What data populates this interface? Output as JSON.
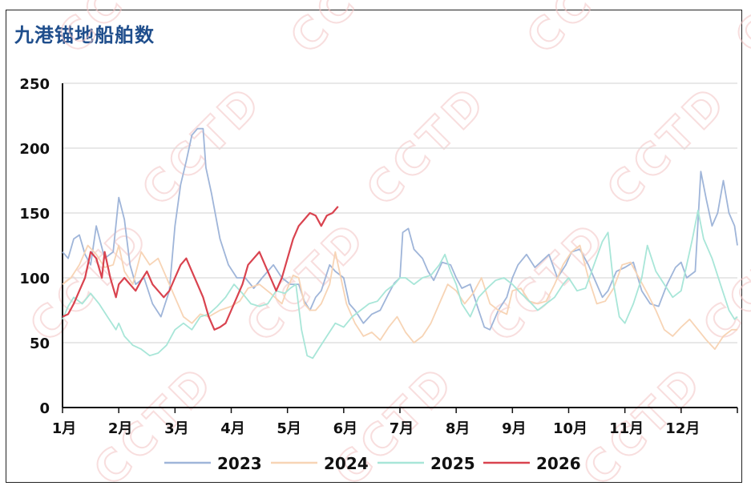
{
  "chart_data": {
    "type": "line",
    "title": "九港锚地船舶数",
    "ylim": [
      0,
      250
    ],
    "yticks": [
      0,
      50,
      100,
      150,
      200,
      250
    ],
    "categories": [
      "1月",
      "2月",
      "3月",
      "4月",
      "5月",
      "6月",
      "7月",
      "8月",
      "9月",
      "10月",
      "11月",
      "12月"
    ],
    "grid": "horizontal",
    "legend_position": "bottom",
    "watermark": "CCTD",
    "series": [
      {
        "name": "2023",
        "color": "#9fb5d9",
        "points": [
          [
            0,
            120
          ],
          [
            0.1,
            115
          ],
          [
            0.2,
            130
          ],
          [
            0.3,
            133
          ],
          [
            0.4,
            118
          ],
          [
            0.5,
            110
          ],
          [
            0.6,
            140
          ],
          [
            0.75,
            115
          ],
          [
            0.9,
            120
          ],
          [
            1.0,
            162
          ],
          [
            1.1,
            145
          ],
          [
            1.2,
            110
          ],
          [
            1.3,
            95
          ],
          [
            1.45,
            100
          ],
          [
            1.6,
            80
          ],
          [
            1.75,
            70
          ],
          [
            1.9,
            90
          ],
          [
            2.0,
            140
          ],
          [
            2.1,
            172
          ],
          [
            2.2,
            190
          ],
          [
            2.3,
            210
          ],
          [
            2.4,
            215
          ],
          [
            2.5,
            215
          ],
          [
            2.55,
            185
          ],
          [
            2.65,
            165
          ],
          [
            2.8,
            130
          ],
          [
            2.95,
            110
          ],
          [
            3.1,
            100
          ],
          [
            3.25,
            100
          ],
          [
            3.4,
            92
          ],
          [
            3.55,
            100
          ],
          [
            3.75,
            110
          ],
          [
            3.9,
            100
          ],
          [
            4.05,
            95
          ],
          [
            4.2,
            95
          ],
          [
            4.3,
            82
          ],
          [
            4.4,
            75
          ],
          [
            4.5,
            85
          ],
          [
            4.6,
            90
          ],
          [
            4.75,
            110
          ],
          [
            4.85,
            105
          ],
          [
            5.0,
            100
          ],
          [
            5.1,
            80
          ],
          [
            5.2,
            75
          ],
          [
            5.35,
            65
          ],
          [
            5.5,
            72
          ],
          [
            5.65,
            75
          ],
          [
            5.8,
            88
          ],
          [
            5.9,
            96
          ],
          [
            6.0,
            100
          ],
          [
            6.05,
            135
          ],
          [
            6.15,
            138
          ],
          [
            6.25,
            122
          ],
          [
            6.4,
            115
          ],
          [
            6.5,
            105
          ],
          [
            6.6,
            98
          ],
          [
            6.75,
            112
          ],
          [
            6.9,
            110
          ],
          [
            7.0,
            100
          ],
          [
            7.1,
            92
          ],
          [
            7.25,
            95
          ],
          [
            7.4,
            75
          ],
          [
            7.5,
            62
          ],
          [
            7.6,
            60
          ],
          [
            7.75,
            75
          ],
          [
            7.9,
            85
          ],
          [
            8.0,
            100
          ],
          [
            8.1,
            110
          ],
          [
            8.25,
            118
          ],
          [
            8.4,
            108
          ],
          [
            8.5,
            112
          ],
          [
            8.65,
            118
          ],
          [
            8.8,
            100
          ],
          [
            8.95,
            110
          ],
          [
            9.05,
            120
          ],
          [
            9.2,
            122
          ],
          [
            9.35,
            110
          ],
          [
            9.5,
            95
          ],
          [
            9.6,
            85
          ],
          [
            9.7,
            90
          ],
          [
            9.85,
            105
          ],
          [
            10.0,
            108
          ],
          [
            10.15,
            112
          ],
          [
            10.3,
            90
          ],
          [
            10.45,
            80
          ],
          [
            10.6,
            78
          ],
          [
            10.75,
            95
          ],
          [
            10.9,
            108
          ],
          [
            11.0,
            112
          ],
          [
            11.1,
            100
          ],
          [
            11.25,
            105
          ],
          [
            11.35,
            182
          ],
          [
            11.45,
            160
          ],
          [
            11.55,
            140
          ],
          [
            11.65,
            150
          ],
          [
            11.75,
            175
          ],
          [
            11.85,
            150
          ],
          [
            11.95,
            140
          ],
          [
            12.0,
            125
          ]
        ]
      },
      {
        "name": "2024",
        "color": "#f7d4b5",
        "points": [
          [
            0,
            95
          ],
          [
            0.15,
            100
          ],
          [
            0.3,
            110
          ],
          [
            0.45,
            125
          ],
          [
            0.6,
            118
          ],
          [
            0.75,
            108
          ],
          [
            0.9,
            110
          ],
          [
            1.0,
            125
          ],
          [
            1.1,
            105
          ],
          [
            1.25,
            95
          ],
          [
            1.4,
            120
          ],
          [
            1.55,
            110
          ],
          [
            1.7,
            115
          ],
          [
            1.85,
            100
          ],
          [
            2.0,
            85
          ],
          [
            2.15,
            70
          ],
          [
            2.3,
            65
          ],
          [
            2.45,
            72
          ],
          [
            2.6,
            70
          ],
          [
            2.8,
            75
          ],
          [
            3.0,
            78
          ],
          [
            3.15,
            82
          ],
          [
            3.3,
            92
          ],
          [
            3.5,
            95
          ],
          [
            3.7,
            88
          ],
          [
            3.9,
            80
          ],
          [
            4.0,
            92
          ],
          [
            4.1,
            102
          ],
          [
            4.2,
            100
          ],
          [
            4.3,
            80
          ],
          [
            4.4,
            75
          ],
          [
            4.5,
            75
          ],
          [
            4.6,
            80
          ],
          [
            4.75,
            95
          ],
          [
            4.85,
            120
          ],
          [
            4.95,
            100
          ],
          [
            5.05,
            80
          ],
          [
            5.2,
            65
          ],
          [
            5.35,
            55
          ],
          [
            5.5,
            58
          ],
          [
            5.65,
            52
          ],
          [
            5.8,
            62
          ],
          [
            5.95,
            70
          ],
          [
            6.1,
            58
          ],
          [
            6.25,
            50
          ],
          [
            6.4,
            55
          ],
          [
            6.55,
            65
          ],
          [
            6.7,
            80
          ],
          [
            6.85,
            95
          ],
          [
            7.0,
            90
          ],
          [
            7.15,
            80
          ],
          [
            7.3,
            88
          ],
          [
            7.45,
            100
          ],
          [
            7.6,
            80
          ],
          [
            7.75,
            75
          ],
          [
            7.9,
            72
          ],
          [
            8.0,
            90
          ],
          [
            8.15,
            92
          ],
          [
            8.3,
            82
          ],
          [
            8.45,
            80
          ],
          [
            8.6,
            82
          ],
          [
            8.75,
            95
          ],
          [
            8.9,
            110
          ],
          [
            9.05,
            120
          ],
          [
            9.2,
            125
          ],
          [
            9.35,
            100
          ],
          [
            9.5,
            80
          ],
          [
            9.65,
            82
          ],
          [
            9.8,
            92
          ],
          [
            9.95,
            110
          ],
          [
            10.1,
            112
          ],
          [
            10.25,
            100
          ],
          [
            10.4,
            88
          ],
          [
            10.55,
            75
          ],
          [
            10.7,
            60
          ],
          [
            10.85,
            55
          ],
          [
            11.0,
            62
          ],
          [
            11.15,
            68
          ],
          [
            11.3,
            60
          ],
          [
            11.45,
            52
          ],
          [
            11.6,
            45
          ],
          [
            11.75,
            55
          ],
          [
            11.9,
            60
          ],
          [
            12.0,
            60
          ]
        ]
      },
      {
        "name": "2025",
        "color": "#a8e6d8",
        "points": [
          [
            0,
            68
          ],
          [
            0.1,
            78
          ],
          [
            0.2,
            85
          ],
          [
            0.35,
            80
          ],
          [
            0.5,
            88
          ],
          [
            0.65,
            80
          ],
          [
            0.8,
            70
          ],
          [
            0.95,
            60
          ],
          [
            1.0,
            65
          ],
          [
            1.1,
            55
          ],
          [
            1.25,
            48
          ],
          [
            1.4,
            45
          ],
          [
            1.55,
            40
          ],
          [
            1.7,
            42
          ],
          [
            1.85,
            48
          ],
          [
            2.0,
            60
          ],
          [
            2.15,
            65
          ],
          [
            2.3,
            60
          ],
          [
            2.45,
            70
          ],
          [
            2.6,
            72
          ],
          [
            2.75,
            78
          ],
          [
            2.9,
            85
          ],
          [
            3.05,
            95
          ],
          [
            3.2,
            88
          ],
          [
            3.35,
            80
          ],
          [
            3.5,
            78
          ],
          [
            3.65,
            80
          ],
          [
            3.8,
            90
          ],
          [
            3.95,
            88
          ],
          [
            4.05,
            92
          ],
          [
            4.15,
            95
          ],
          [
            4.25,
            60
          ],
          [
            4.35,
            40
          ],
          [
            4.45,
            38
          ],
          [
            4.55,
            45
          ],
          [
            4.7,
            55
          ],
          [
            4.85,
            65
          ],
          [
            5.0,
            62
          ],
          [
            5.15,
            70
          ],
          [
            5.3,
            75
          ],
          [
            5.45,
            80
          ],
          [
            5.6,
            82
          ],
          [
            5.75,
            90
          ],
          [
            5.9,
            95
          ],
          [
            6.0,
            100
          ],
          [
            6.1,
            100
          ],
          [
            6.25,
            95
          ],
          [
            6.4,
            100
          ],
          [
            6.55,
            102
          ],
          [
            6.7,
            110
          ],
          [
            6.8,
            118
          ],
          [
            6.9,
            105
          ],
          [
            7.0,
            95
          ],
          [
            7.1,
            80
          ],
          [
            7.25,
            70
          ],
          [
            7.4,
            85
          ],
          [
            7.55,
            92
          ],
          [
            7.7,
            98
          ],
          [
            7.85,
            100
          ],
          [
            8.0,
            95
          ],
          [
            8.15,
            88
          ],
          [
            8.3,
            82
          ],
          [
            8.45,
            75
          ],
          [
            8.6,
            80
          ],
          [
            8.75,
            85
          ],
          [
            8.9,
            95
          ],
          [
            9.0,
            100
          ],
          [
            9.15,
            90
          ],
          [
            9.3,
            92
          ],
          [
            9.45,
            110
          ],
          [
            9.6,
            128
          ],
          [
            9.7,
            135
          ],
          [
            9.8,
            95
          ],
          [
            9.9,
            70
          ],
          [
            10.0,
            65
          ],
          [
            10.15,
            80
          ],
          [
            10.3,
            100
          ],
          [
            10.4,
            125
          ],
          [
            10.55,
            105
          ],
          [
            10.7,
            95
          ],
          [
            10.85,
            85
          ],
          [
            11.0,
            90
          ],
          [
            11.1,
            110
          ],
          [
            11.2,
            130
          ],
          [
            11.3,
            152
          ],
          [
            11.4,
            130
          ],
          [
            11.55,
            115
          ],
          [
            11.7,
            95
          ],
          [
            11.85,
            75
          ],
          [
            11.95,
            68
          ],
          [
            12.0,
            70
          ]
        ]
      },
      {
        "name": "2026",
        "color": "#d9434f",
        "points": [
          [
            0,
            70
          ],
          [
            0.1,
            72
          ],
          [
            0.2,
            80
          ],
          [
            0.3,
            90
          ],
          [
            0.4,
            100
          ],
          [
            0.5,
            120
          ],
          [
            0.6,
            115
          ],
          [
            0.7,
            100
          ],
          [
            0.75,
            120
          ],
          [
            0.85,
            100
          ],
          [
            0.95,
            85
          ],
          [
            1.0,
            95
          ],
          [
            1.1,
            100
          ],
          [
            1.2,
            95
          ],
          [
            1.3,
            90
          ],
          [
            1.4,
            98
          ],
          [
            1.5,
            105
          ],
          [
            1.6,
            95
          ],
          [
            1.7,
            90
          ],
          [
            1.8,
            85
          ],
          [
            1.9,
            90
          ],
          [
            2.0,
            100
          ],
          [
            2.1,
            110
          ],
          [
            2.2,
            115
          ],
          [
            2.3,
            105
          ],
          [
            2.4,
            95
          ],
          [
            2.5,
            85
          ],
          [
            2.6,
            70
          ],
          [
            2.7,
            60
          ],
          [
            2.8,
            62
          ],
          [
            2.9,
            65
          ],
          [
            3.0,
            75
          ],
          [
            3.1,
            85
          ],
          [
            3.2,
            95
          ],
          [
            3.3,
            110
          ],
          [
            3.4,
            115
          ],
          [
            3.5,
            120
          ],
          [
            3.6,
            110
          ],
          [
            3.7,
            100
          ],
          [
            3.8,
            90
          ],
          [
            3.9,
            100
          ],
          [
            4.0,
            115
          ],
          [
            4.1,
            130
          ],
          [
            4.2,
            140
          ],
          [
            4.3,
            145
          ],
          [
            4.4,
            150
          ],
          [
            4.5,
            148
          ],
          [
            4.6,
            140
          ],
          [
            4.7,
            148
          ],
          [
            4.8,
            150
          ],
          [
            4.9,
            155
          ]
        ]
      }
    ]
  }
}
